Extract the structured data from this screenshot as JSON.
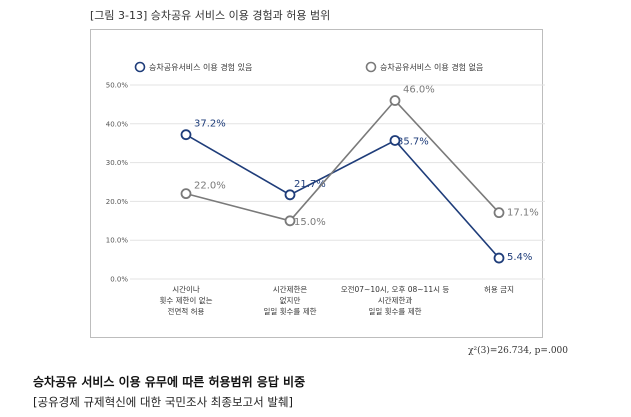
{
  "figure_label": "[그림 3-13]  승차공유 서비스 이용 경험과 허용 범위",
  "stat_text": "χ²(3)=26.734,  p=.000",
  "caption": "승차공유 서비스 이용 유무에 따른 허용범위 응답 비중",
  "source": "[공유경제 규제혁신에 대한 국민조사 최종보고서 발췌]",
  "colors": {
    "series_a": "#1f3d7a",
    "series_b": "#7a7a7a",
    "grid": "#e3e3e3",
    "axis_text": "#555555"
  },
  "chart_data": {
    "type": "line",
    "title": "",
    "xlabel": "",
    "ylabel": "",
    "ylim": [
      0,
      50
    ],
    "yticks": [
      "0.0%",
      "10.0%",
      "20.0%",
      "30.0%",
      "40.0%",
      "50.0%"
    ],
    "grid": true,
    "legend_position": "top",
    "categories": [
      [
        "시간이나",
        "횟수 제한이 없는",
        "전면적 허용"
      ],
      [
        "시간제한은",
        "없지만",
        "일일 횟수를 제한"
      ],
      [
        "오전07~10시, 오후 08~11시 등",
        "시간제한과",
        "일일 횟수를 제한"
      ],
      [
        "허용 금지"
      ]
    ],
    "series": [
      {
        "name": "승차공유서비스 이용 경험 있음",
        "values": [
          37.2,
          21.7,
          35.7,
          5.4
        ],
        "labels": [
          "37.2%",
          "21.7%",
          "35.7%",
          "5.4%"
        ]
      },
      {
        "name": "승차공유서비스 이용 경험 없음",
        "values": [
          22.0,
          15.0,
          46.0,
          17.1
        ],
        "labels": [
          "22.0%",
          "15.0%",
          "46.0%",
          "17.1%"
        ]
      }
    ]
  }
}
